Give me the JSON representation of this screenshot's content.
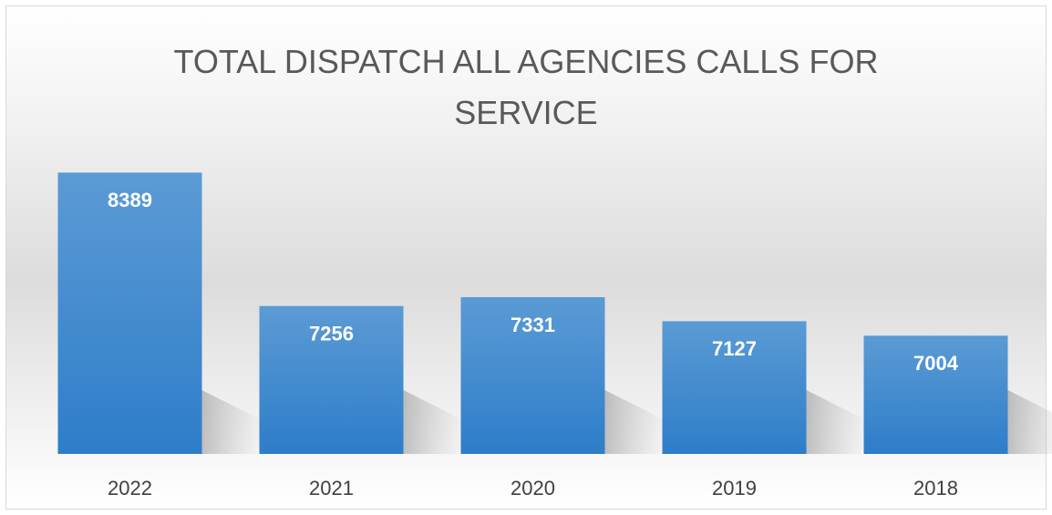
{
  "chart_data": {
    "type": "bar",
    "title": "TOTAL DISPATCH ALL AGENCIES CALLS FOR SERVICE",
    "categories": [
      "2022",
      "2021",
      "2020",
      "2019",
      "2018"
    ],
    "values": [
      8389,
      7256,
      7331,
      7127,
      7004
    ],
    "color": "#3d87cf",
    "ylim": [
      6000,
      8500
    ]
  }
}
